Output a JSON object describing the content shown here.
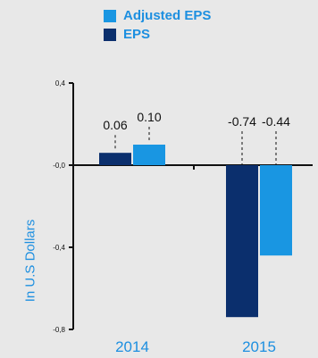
{
  "colors": {
    "eps": "#0b2f6d",
    "adjusted_eps": "#1996e2",
    "axis": "#111111",
    "label_dark": "#111111",
    "label_blue": "#1d8fe0"
  },
  "chart_data": {
    "type": "bar",
    "categories": [
      "2014",
      "2015"
    ],
    "series": [
      {
        "name": "EPS",
        "values": [
          0.06,
          -0.74
        ]
      },
      {
        "name": "Adjusted EPS",
        "values": [
          0.1,
          -0.44
        ]
      }
    ],
    "value_labels": {
      "EPS": [
        "0.06",
        "-0.74"
      ],
      "Adjusted EPS": [
        "0.10",
        "-0.44"
      ]
    },
    "ylabel": "In U.S Dollars",
    "yticks": [
      0.4,
      0.0,
      -0.4,
      -0.8
    ],
    "ytick_labels": [
      "0,4",
      "-0,0",
      "-0,4",
      "-0,8"
    ],
    "ylim": [
      -0.8,
      0.4
    ],
    "legend": [
      "Adjusted EPS",
      "EPS"
    ],
    "legend_position": "top",
    "grid": false
  }
}
